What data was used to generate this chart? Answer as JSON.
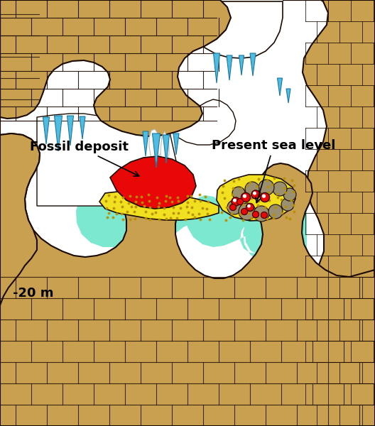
{
  "bg_color": "#ffffff",
  "rock_color": "#c8a050",
  "rock_edge_color": "#1a0a00",
  "water_color": "#7de8d0",
  "cave_color": "#ffffff",
  "fossil_red": "#e80808",
  "fossil_yellow": "#f0e020",
  "fossil_yellow_dot": "#b89000",
  "stalactite_color": "#50bce0",
  "stalactite_edge": "#1878a0",
  "label_fossil": "Fossil deposit",
  "label_sealevel": "Present sea level",
  "label_depth": "-20 m",
  "fontsize": 13
}
